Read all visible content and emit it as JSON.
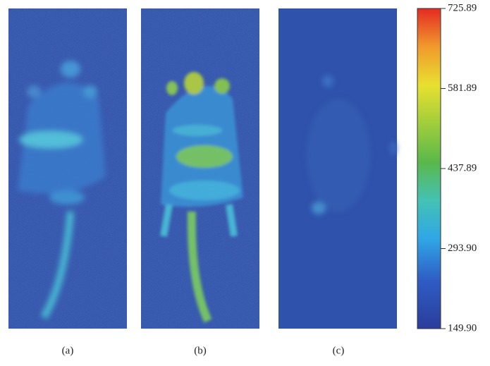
{
  "panels": [
    {
      "label": "(a)"
    },
    {
      "label": "(b)"
    },
    {
      "label": "(c)"
    }
  ],
  "colorbar": {
    "range": [
      149.9,
      725.89
    ],
    "ticks": [
      725.89,
      581.89,
      437.89,
      {
        "value": 293.9,
        "label": "293.90"
      },
      {
        "value": 149.9,
        "label": "149.90"
      }
    ]
  }
}
